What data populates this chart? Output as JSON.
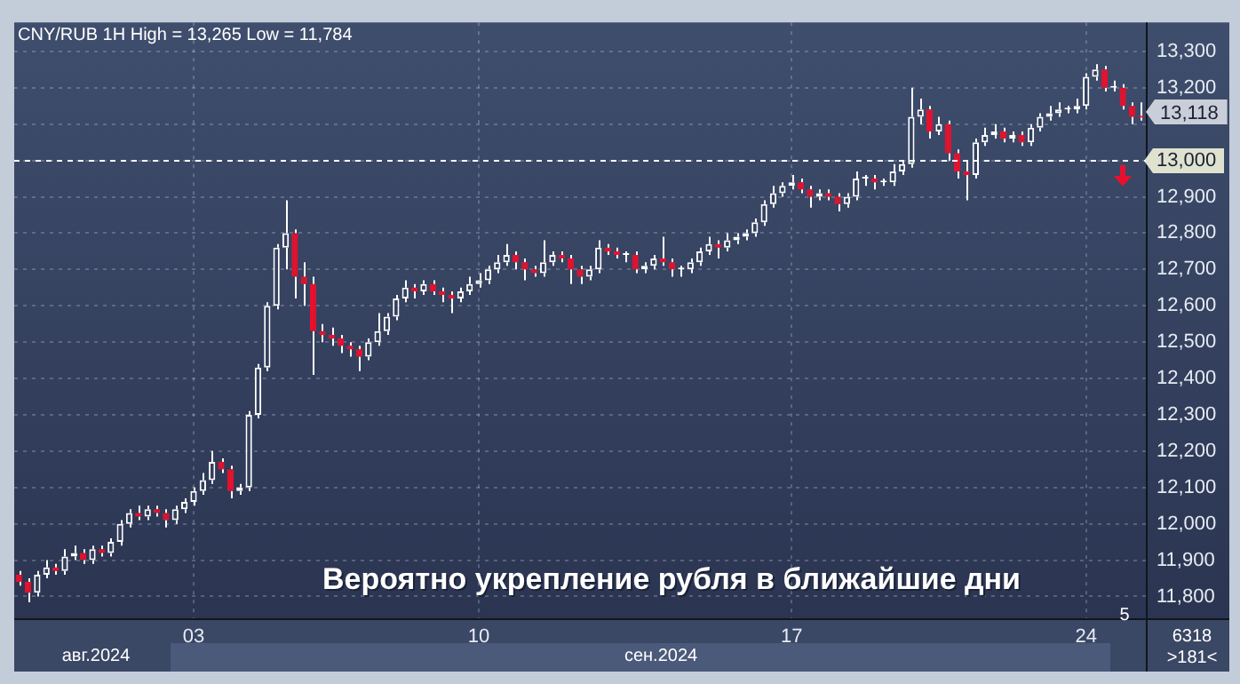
{
  "chart_data": {
    "type": "candlestick",
    "title": "CNY/RUB 1H High = 13,265 Low = 11,784",
    "categories": [
      null,
      null,
      null,
      null,
      null,
      null,
      null,
      null,
      null,
      null,
      null,
      null,
      null,
      null,
      null,
      null,
      null,
      null,
      null,
      "03",
      null,
      null,
      null,
      null,
      null,
      null,
      null,
      null,
      null,
      null,
      null,
      null,
      null,
      null,
      null,
      null,
      null,
      null,
      null,
      null,
      null,
      null,
      null,
      null,
      null,
      null,
      null,
      null,
      null,
      null,
      "10",
      null,
      null,
      null,
      null,
      null,
      null,
      null,
      null,
      null,
      null,
      null,
      null,
      null,
      null,
      null,
      null,
      null,
      null,
      null,
      null,
      null,
      null,
      null,
      null,
      null,
      null,
      null,
      null,
      null,
      null,
      null,
      null,
      null,
      "17",
      null,
      null,
      null,
      null,
      null,
      null,
      null,
      null,
      null,
      null,
      null,
      null,
      null,
      null,
      null,
      null,
      null,
      null,
      null,
      null,
      null,
      null,
      null,
      null,
      null,
      null,
      null,
      null,
      null,
      null,
      null,
      "24",
      null,
      null,
      null,
      null,
      null,
      null
    ],
    "ohlc": [
      [
        11860,
        11870,
        11830,
        11840
      ],
      [
        11840,
        11850,
        11784,
        11810
      ],
      [
        11810,
        11870,
        11800,
        11860
      ],
      [
        11860,
        11900,
        11850,
        11880
      ],
      [
        11880,
        11890,
        11860,
        11870
      ],
      [
        11870,
        11930,
        11860,
        11910
      ],
      [
        11910,
        11940,
        11900,
        11920
      ],
      [
        11920,
        11930,
        11890,
        11900
      ],
      [
        11900,
        11940,
        11890,
        11930
      ],
      [
        11930,
        11940,
        11910,
        11920
      ],
      [
        11920,
        11960,
        11910,
        11950
      ],
      [
        11950,
        12010,
        11940,
        12000
      ],
      [
        12000,
        12040,
        11990,
        12030
      ],
      [
        12030,
        12050,
        12010,
        12020
      ],
      [
        12020,
        12050,
        12010,
        12040
      ],
      [
        12040,
        12050,
        12020,
        12030
      ],
      [
        12030,
        12040,
        11990,
        12010
      ],
      [
        12010,
        12050,
        12000,
        12040
      ],
      [
        12040,
        12070,
        12030,
        12060
      ],
      [
        12060,
        12100,
        12050,
        12090
      ],
      [
        12090,
        12140,
        12080,
        12120
      ],
      [
        12120,
        12200,
        12110,
        12170
      ],
      [
        12170,
        12180,
        12140,
        12150
      ],
      [
        12150,
        12160,
        12070,
        12090
      ],
      [
        12090,
        12110,
        12080,
        12100
      ],
      [
        12100,
        12310,
        12090,
        12300
      ],
      [
        12300,
        12440,
        12290,
        12430
      ],
      [
        12430,
        12610,
        12420,
        12600
      ],
      [
        12600,
        12770,
        12590,
        12760
      ],
      [
        12760,
        12890,
        12700,
        12800
      ],
      [
        12800,
        12810,
        12620,
        12680
      ],
      [
        12680,
        12720,
        12600,
        12660
      ],
      [
        12660,
        12680,
        12410,
        12530
      ],
      [
        12530,
        12550,
        12500,
        12520
      ],
      [
        12520,
        12540,
        12490,
        12510
      ],
      [
        12510,
        12520,
        12470,
        12490
      ],
      [
        12490,
        12500,
        12460,
        12480
      ],
      [
        12480,
        12490,
        12420,
        12460
      ],
      [
        12460,
        12510,
        12450,
        12500
      ],
      [
        12500,
        12580,
        12490,
        12530
      ],
      [
        12530,
        12580,
        12520,
        12570
      ],
      [
        12570,
        12630,
        12560,
        12620
      ],
      [
        12620,
        12670,
        12610,
        12650
      ],
      [
        12650,
        12660,
        12620,
        12640
      ],
      [
        12640,
        12670,
        12630,
        12660
      ],
      [
        12660,
        12670,
        12630,
        12640
      ],
      [
        12640,
        12650,
        12610,
        12630
      ],
      [
        12630,
        12640,
        12580,
        12620
      ],
      [
        12620,
        12650,
        12610,
        12640
      ],
      [
        12640,
        12680,
        12630,
        12660
      ],
      [
        12660,
        12690,
        12650,
        12670
      ],
      [
        12670,
        12710,
        12660,
        12700
      ],
      [
        12700,
        12740,
        12690,
        12720
      ],
      [
        12720,
        12770,
        12710,
        12740
      ],
      [
        12740,
        12750,
        12700,
        12720
      ],
      [
        12720,
        12730,
        12670,
        12700
      ],
      [
        12700,
        12710,
        12680,
        12690
      ],
      [
        12690,
        12780,
        12680,
        12720
      ],
      [
        12720,
        12750,
        12710,
        12740
      ],
      [
        12740,
        12750,
        12720,
        12730
      ],
      [
        12730,
        12740,
        12660,
        12700
      ],
      [
        12700,
        12710,
        12660,
        12680
      ],
      [
        12680,
        12710,
        12670,
        12700
      ],
      [
        12700,
        12780,
        12690,
        12760
      ],
      [
        12760,
        12770,
        12740,
        12750
      ],
      [
        12750,
        12760,
        12730,
        12740
      ],
      [
        12740,
        12750,
        12720,
        12740
      ],
      [
        12740,
        12750,
        12690,
        12700
      ],
      [
        12700,
        12720,
        12690,
        12710
      ],
      [
        12710,
        12740,
        12700,
        12730
      ],
      [
        12730,
        12790,
        12710,
        12720
      ],
      [
        12720,
        12730,
        12680,
        12700
      ],
      [
        12700,
        12710,
        12680,
        12700
      ],
      [
        12700,
        12730,
        12690,
        12720
      ],
      [
        12720,
        12760,
        12710,
        12750
      ],
      [
        12750,
        12790,
        12740,
        12770
      ],
      [
        12770,
        12780,
        12730,
        12760
      ],
      [
        12760,
        12800,
        12750,
        12780
      ],
      [
        12780,
        12800,
        12770,
        12790
      ],
      [
        12790,
        12810,
        12780,
        12800
      ],
      [
        12800,
        12840,
        12790,
        12830
      ],
      [
        12830,
        12890,
        12820,
        12880
      ],
      [
        12880,
        12930,
        12870,
        12910
      ],
      [
        12910,
        12940,
        12900,
        12930
      ],
      [
        12930,
        12960,
        12920,
        12940
      ],
      [
        12940,
        12950,
        12910,
        12920
      ],
      [
        12920,
        12930,
        12870,
        12900
      ],
      [
        12900,
        12920,
        12890,
        12910
      ],
      [
        12910,
        12920,
        12890,
        12900
      ],
      [
        12900,
        12910,
        12860,
        12880
      ],
      [
        12880,
        12910,
        12870,
        12900
      ],
      [
        12900,
        12970,
        12890,
        12950
      ],
      [
        12950,
        12960,
        12930,
        12950
      ],
      [
        12950,
        12960,
        12920,
        12940
      ],
      [
        12940,
        12950,
        12930,
        12940
      ],
      [
        12940,
        12990,
        12930,
        12970
      ],
      [
        12970,
        13000,
        12960,
        12990
      ],
      [
        12990,
        13200,
        12980,
        13120
      ],
      [
        13120,
        13170,
        13100,
        13140
      ],
      [
        13140,
        13150,
        13060,
        13080
      ],
      [
        13080,
        13120,
        13070,
        13100
      ],
      [
        13100,
        13110,
        13000,
        13020
      ],
      [
        13020,
        13030,
        12950,
        12970
      ],
      [
        12970,
        13000,
        12890,
        12960
      ],
      [
        12960,
        13060,
        12950,
        13050
      ],
      [
        13050,
        13090,
        13040,
        13070
      ],
      [
        13070,
        13100,
        13060,
        13080
      ],
      [
        13080,
        13090,
        13050,
        13060
      ],
      [
        13060,
        13080,
        13050,
        13070
      ],
      [
        13070,
        13080,
        13040,
        13050
      ],
      [
        13050,
        13100,
        13040,
        13090
      ],
      [
        13090,
        13130,
        13080,
        13120
      ],
      [
        13120,
        13150,
        13110,
        13130
      ],
      [
        13130,
        13160,
        13120,
        13140
      ],
      [
        13140,
        13150,
        13130,
        13140
      ],
      [
        13140,
        13170,
        13130,
        13150
      ],
      [
        13150,
        13240,
        13140,
        13230
      ],
      [
        13230,
        13265,
        13220,
        13250
      ],
      [
        13250,
        13260,
        13190,
        13200
      ],
      [
        13200,
        13220,
        13190,
        13200
      ],
      [
        13200,
        13210,
        13140,
        13150
      ],
      [
        13150,
        13160,
        13100,
        13120
      ],
      [
        13120,
        13160,
        13110,
        13118
      ]
    ],
    "colors": [
      "#e8112d",
      "#e8112d",
      "#ffffff",
      "#ffffff",
      "#e8112d",
      "#ffffff",
      "#ffffff",
      "#e8112d",
      "#ffffff",
      "#e8112d",
      "#ffffff",
      "#ffffff",
      "#ffffff",
      "#e8112d",
      "#ffffff",
      "#e8112d",
      "#e8112d",
      "#ffffff",
      "#ffffff",
      "#ffffff",
      "#ffffff",
      "#ffffff",
      "#e8112d",
      "#e8112d",
      "#ffffff",
      "#ffffff",
      "#ffffff",
      "#ffffff",
      "#ffffff",
      "#ffffff",
      "#e8112d",
      "#e8112d",
      "#e8112d",
      "#e8112d",
      "#e8112d",
      "#e8112d",
      "#e8112d",
      "#e8112d",
      "#ffffff",
      "#ffffff",
      "#ffffff",
      "#ffffff",
      "#ffffff",
      "#e8112d",
      "#ffffff",
      "#e8112d",
      "#e8112d",
      "#e8112d",
      "#ffffff",
      "#ffffff",
      "#ffffff",
      "#ffffff",
      "#ffffff",
      "#ffffff",
      "#e8112d",
      "#e8112d",
      "#e8112d",
      "#ffffff",
      "#ffffff",
      "#e8112d",
      "#e8112d",
      "#e8112d",
      "#ffffff",
      "#ffffff",
      "#e8112d",
      "#e8112d",
      "#ffffff",
      "#e8112d",
      "#ffffff",
      "#ffffff",
      "#e8112d",
      "#e8112d",
      "#ffffff",
      "#ffffff",
      "#ffffff",
      "#ffffff",
      "#e8112d",
      "#ffffff",
      "#ffffff",
      "#ffffff",
      "#ffffff",
      "#ffffff",
      "#ffffff",
      "#ffffff",
      "#ffffff",
      "#e8112d",
      "#e8112d",
      "#ffffff",
      "#e8112d",
      "#e8112d",
      "#ffffff",
      "#ffffff",
      "#ffffff",
      "#e8112d",
      "#ffffff",
      "#ffffff",
      "#ffffff",
      "#ffffff",
      "#ffffff",
      "#e8112d",
      "#ffffff",
      "#e8112d",
      "#e8112d",
      "#e8112d",
      "#ffffff",
      "#ffffff",
      "#ffffff",
      "#e8112d",
      "#ffffff",
      "#e8112d",
      "#ffffff",
      "#ffffff",
      "#ffffff",
      "#ffffff",
      "#ffffff",
      "#ffffff",
      "#ffffff",
      "#ffffff",
      "#e8112d",
      "#ffffff",
      "#e8112d",
      "#e8112d",
      "#e8112d"
    ],
    "ylim": [
      11740,
      13380
    ],
    "yticks": [
      {
        "value": 11800,
        "label": "11,800"
      },
      {
        "value": 11900,
        "label": "11,900"
      },
      {
        "value": 12000,
        "label": "12,000"
      },
      {
        "value": 12100,
        "label": "12,100"
      },
      {
        "value": 12200,
        "label": "12,200"
      },
      {
        "value": 12300,
        "label": "12,300"
      },
      {
        "value": 12400,
        "label": "12,400"
      },
      {
        "value": 12500,
        "label": "12,500"
      },
      {
        "value": 12600,
        "label": "12,600"
      },
      {
        "value": 12700,
        "label": "12,700"
      },
      {
        "value": 12800,
        "label": "12,800"
      },
      {
        "value": 12900,
        "label": "12,900"
      },
      {
        "value": 13000,
        "label": "13,000"
      },
      {
        "value": 13100,
        "label": null
      },
      {
        "value": 13200,
        "label": "13,200"
      },
      {
        "value": 13300,
        "label": "13,300"
      }
    ],
    "grid": true,
    "legend": false,
    "ref_lines": [
      {
        "axis": "y",
        "value": 13000,
        "color": "#ffffff",
        "line_style": "dashed"
      }
    ],
    "annotations": [
      "Вероятно укрепление рубля в ближайшие дни",
      "авг.2024",
      "сен.2024",
      "5",
      "6318",
      ">181<",
      "13,118"
    ]
  }
}
